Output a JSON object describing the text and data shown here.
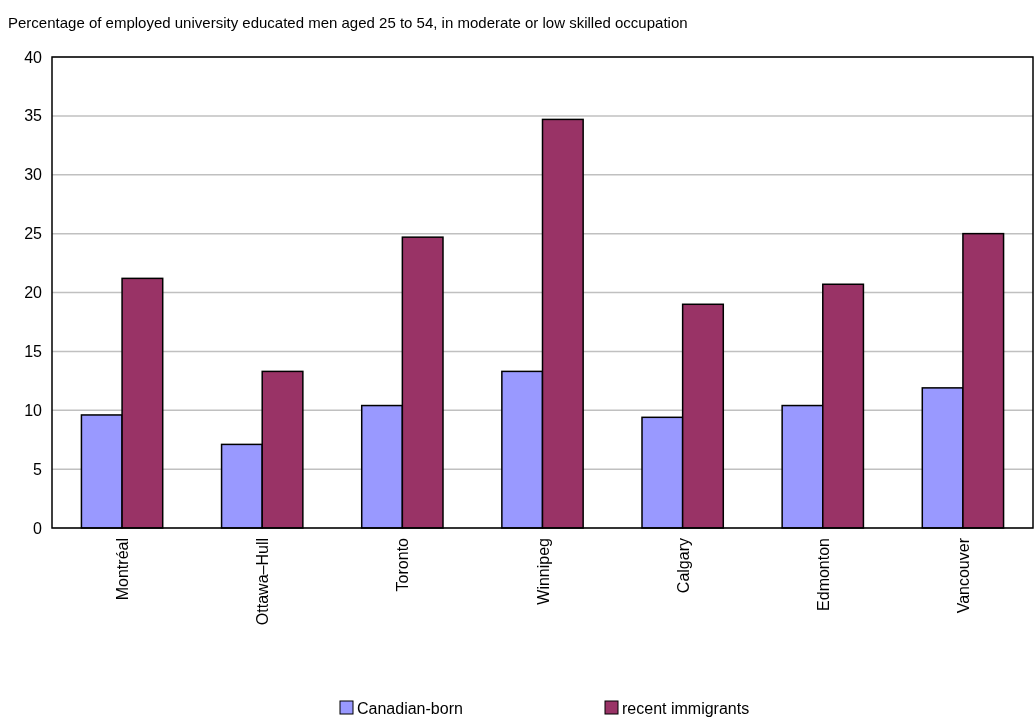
{
  "chart_data": {
    "type": "bar",
    "title": "Percentage of employed university educated men aged 25 to 54, in moderate or low  skilled occupation",
    "categories": [
      "Montréal",
      "Ottawa–Hull",
      "Toronto",
      "Winnipeg",
      "Calgary",
      "Edmonton",
      "Vancouver"
    ],
    "series": [
      {
        "name": "Canadian-born",
        "color": "#9999ff",
        "values": [
          9.6,
          7.1,
          10.4,
          13.3,
          9.4,
          10.4,
          11.9
        ]
      },
      {
        "name": "recent immigrants",
        "color": "#993366",
        "values": [
          21.2,
          13.3,
          24.7,
          34.7,
          19.0,
          20.7,
          25.0
        ]
      }
    ],
    "ylim": [
      0,
      40
    ],
    "yticks": [
      0,
      5,
      10,
      15,
      20,
      25,
      30,
      35,
      40
    ],
    "grid": "y",
    "legend": "bottom"
  }
}
